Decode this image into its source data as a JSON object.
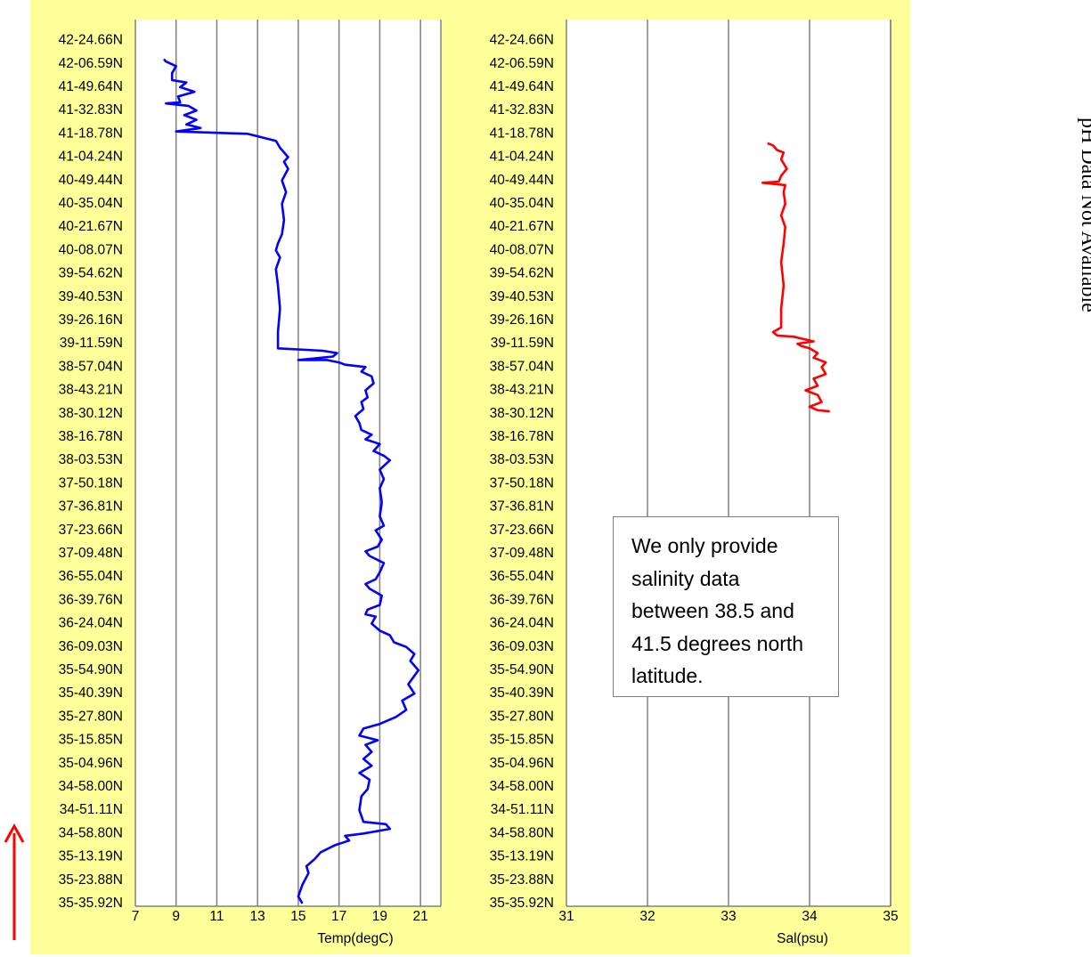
{
  "colors": {
    "panel_background": "#ffff99",
    "plot_background": "#ffffff",
    "gridline": "#808080",
    "temperature_line": "#0000ff",
    "salinity_line": "#ff0000",
    "direction_arrow": "#ff0000"
  },
  "latitude_labels": [
    "42-24.66N",
    "42-06.59N",
    "41-49.64N",
    "41-32.83N",
    "41-18.78N",
    "41-04.24N",
    "40-49.44N",
    "40-35.04N",
    "40-21.67N",
    "40-08.07N",
    "39-54.62N",
    "39-40.53N",
    "39-26.16N",
    "39-11.59N",
    "38-57.04N",
    "38-43.21N",
    "38-30.12N",
    "38-16.78N",
    "38-03.53N",
    "37-50.18N",
    "37-36.81N",
    "37-23.66N",
    "37-09.48N",
    "36-55.04N",
    "36-39.76N",
    "36-24.04N",
    "36-09.03N",
    "35-54.90N",
    "35-40.39N",
    "35-27.80N",
    "35-15.85N",
    "35-04.96N",
    "34-58.00N",
    "34-51.11N",
    "34-58.80N",
    "35-13.19N",
    "35-23.88N",
    "35-35.92N"
  ],
  "notice_text": "We only provide salinity data between 38.5 and 41.5 degrees north latitude.",
  "ph_note": "pH Data Not Available",
  "direction_arrow_icon": "up-arrow-icon",
  "chart_data": [
    {
      "type": "line",
      "xlabel": "Temp(degC)",
      "xlim": [
        7,
        22
      ],
      "xticks": [
        7,
        9,
        11,
        13,
        15,
        17,
        19,
        21
      ],
      "grid": true,
      "y_label_order": "bottom-to-top along ship track",
      "series": [
        {
          "points": [
            [
              15.2,
              0
            ],
            [
              15.0,
              0.3
            ],
            [
              15.2,
              0.8
            ],
            [
              15.5,
              1.3
            ],
            [
              15.4,
              1.6
            ],
            [
              15.8,
              1.9
            ],
            [
              16.1,
              2.2
            ],
            [
              16.8,
              2.5
            ],
            [
              17.5,
              2.7
            ],
            [
              17.3,
              2.9
            ],
            [
              18.2,
              3.0
            ],
            [
              19.5,
              3.2
            ],
            [
              19.3,
              3.4
            ],
            [
              18.2,
              3.5
            ],
            [
              18.0,
              4.0
            ],
            [
              18.1,
              4.6
            ],
            [
              18.4,
              4.9
            ],
            [
              18.5,
              5.3
            ],
            [
              18.0,
              5.6
            ],
            [
              18.6,
              5.9
            ],
            [
              18.2,
              6.2
            ],
            [
              18.6,
              6.5
            ],
            [
              18.3,
              6.8
            ],
            [
              18.9,
              7.0
            ],
            [
              18.0,
              7.2
            ],
            [
              18.2,
              7.5
            ],
            [
              19.0,
              7.7
            ],
            [
              19.8,
              8.0
            ],
            [
              20.3,
              8.3
            ],
            [
              20.1,
              8.7
            ],
            [
              20.7,
              9.0
            ],
            [
              20.4,
              9.4
            ],
            [
              20.9,
              10.0
            ],
            [
              20.5,
              10.4
            ],
            [
              20.7,
              10.7
            ],
            [
              20.3,
              11.0
            ],
            [
              19.7,
              11.2
            ],
            [
              19.5,
              11.5
            ],
            [
              19.0,
              11.7
            ],
            [
              18.6,
              12.0
            ],
            [
              18.8,
              12.3
            ],
            [
              18.3,
              12.4
            ],
            [
              18.4,
              12.6
            ],
            [
              19.0,
              12.8
            ],
            [
              19.1,
              13.2
            ],
            [
              18.5,
              13.5
            ],
            [
              18.3,
              13.7
            ],
            [
              18.8,
              13.9
            ],
            [
              19.0,
              14.2
            ],
            [
              19.2,
              14.6
            ],
            [
              18.5,
              14.9
            ],
            [
              18.3,
              15.1
            ],
            [
              18.9,
              15.3
            ],
            [
              19.1,
              15.6
            ],
            [
              18.8,
              16.0
            ],
            [
              19.2,
              16.2
            ],
            [
              19.0,
              16.6
            ],
            [
              19.1,
              17.2
            ],
            [
              19.0,
              17.8
            ],
            [
              19.2,
              18.2
            ],
            [
              19.0,
              18.6
            ],
            [
              19.5,
              19.0
            ],
            [
              19.2,
              19.2
            ],
            [
              18.7,
              19.4
            ],
            [
              19.0,
              19.7
            ],
            [
              18.3,
              19.9
            ],
            [
              18.6,
              20.1
            ],
            [
              18.1,
              20.3
            ],
            [
              18.0,
              20.6
            ],
            [
              17.8,
              20.9
            ],
            [
              18.2,
              21.2
            ],
            [
              18.1,
              21.5
            ],
            [
              18.4,
              21.7
            ],
            [
              18.3,
              22.0
            ],
            [
              18.7,
              22.3
            ],
            [
              18.6,
              22.6
            ],
            [
              18.1,
              22.8
            ],
            [
              18.3,
              23.0
            ],
            [
              17.3,
              23.1
            ],
            [
              17.0,
              23.2
            ],
            [
              16.4,
              23.3
            ],
            [
              15.0,
              23.3
            ],
            [
              16.7,
              23.45
            ],
            [
              16.9,
              23.6
            ],
            [
              16.2,
              23.7
            ],
            [
              14.0,
              23.8
            ],
            [
              14.0,
              24.5
            ],
            [
              14.1,
              25.5
            ],
            [
              14.0,
              26.5
            ],
            [
              13.9,
              27.2
            ],
            [
              14.1,
              27.7
            ],
            [
              13.9,
              28.0
            ],
            [
              14.0,
              28.3
            ],
            [
              14.2,
              28.7
            ],
            [
              14.3,
              29.3
            ],
            [
              14.2,
              30.0
            ],
            [
              14.4,
              30.5
            ],
            [
              14.2,
              31.0
            ],
            [
              14.5,
              31.5
            ],
            [
              14.3,
              31.8
            ],
            [
              14.5,
              32.0
            ],
            [
              14.1,
              32.4
            ],
            [
              13.9,
              32.7
            ],
            [
              12.5,
              33.0
            ],
            [
              9.0,
              33.1
            ],
            [
              10.2,
              33.25
            ],
            [
              9.5,
              33.4
            ],
            [
              10.0,
              33.6
            ],
            [
              9.4,
              33.8
            ],
            [
              10.0,
              34.0
            ],
            [
              9.6,
              34.2
            ],
            [
              8.5,
              34.3
            ],
            [
              9.2,
              34.35
            ],
            [
              9.1,
              34.6
            ],
            [
              9.9,
              34.8
            ],
            [
              9.2,
              35.0
            ],
            [
              9.5,
              35.2
            ],
            [
              8.8,
              35.3
            ],
            [
              8.8,
              35.6
            ],
            [
              9.0,
              35.9
            ],
            [
              8.5,
              36.1
            ],
            [
              8.4,
              36.2
            ]
          ]
        }
      ]
    },
    {
      "type": "line",
      "xlabel": "Sal(psu)",
      "xlim": [
        31,
        35
      ],
      "xticks": [
        31,
        32,
        33,
        34,
        35
      ],
      "grid": true,
      "y_label_order": "bottom-to-top along ship track",
      "series": [
        {
          "points": [
            [
              34.25,
              21.1
            ],
            [
              34.1,
              21.15
            ],
            [
              34.0,
              21.3
            ],
            [
              34.15,
              21.5
            ],
            [
              34.1,
              21.8
            ],
            [
              33.95,
              22.0
            ],
            [
              34.1,
              22.2
            ],
            [
              34.05,
              22.5
            ],
            [
              34.2,
              22.7
            ],
            [
              34.15,
              23.0
            ],
            [
              34.2,
              23.2
            ],
            [
              34.05,
              23.4
            ],
            [
              34.1,
              23.6
            ],
            [
              34.0,
              23.8
            ],
            [
              33.9,
              23.9
            ],
            [
              33.85,
              24.0
            ],
            [
              34.05,
              24.1
            ],
            [
              33.8,
              24.3
            ],
            [
              33.6,
              24.35
            ],
            [
              33.55,
              24.5
            ],
            [
              33.65,
              24.7
            ],
            [
              33.65,
              25.5
            ],
            [
              33.68,
              26.5
            ],
            [
              33.65,
              27.5
            ],
            [
              33.68,
              28.3
            ],
            [
              33.7,
              29.0
            ],
            [
              33.65,
              29.5
            ],
            [
              33.7,
              30.0
            ],
            [
              33.68,
              30.5
            ],
            [
              33.7,
              30.8
            ],
            [
              33.42,
              30.9
            ],
            [
              33.62,
              30.95
            ],
            [
              33.65,
              31.2
            ],
            [
              33.72,
              31.5
            ],
            [
              33.65,
              31.9
            ],
            [
              33.68,
              32.2
            ],
            [
              33.6,
              32.3
            ],
            [
              33.55,
              32.5
            ],
            [
              33.48,
              32.6
            ]
          ]
        }
      ]
    }
  ]
}
